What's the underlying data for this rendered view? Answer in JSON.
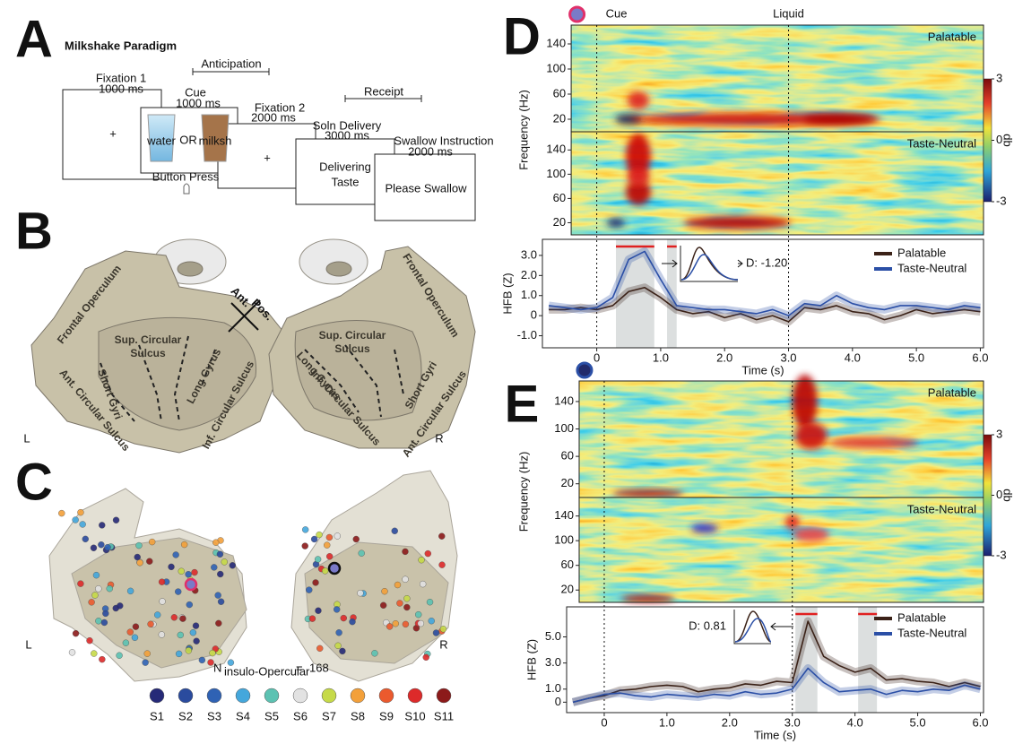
{
  "panel_a": {
    "letter": "A",
    "title": "Milkshake Paradigm",
    "fixation1": "Fixation 1",
    "fixation1_duration": "1000 ms",
    "anticipation": "Anticipation",
    "cue": "Cue",
    "cue_duration": "1000 ms",
    "water": "water",
    "or": "OR",
    "milkshake": "milksh",
    "button_press": "Button Press",
    "fixation2": "Fixation 2",
    "fixation2_duration": "2000 ms",
    "plus": "+",
    "receipt": "Receipt",
    "delivery": "Soln Delivery",
    "delivery_duration": "3000 ms",
    "delivering": "Delivering",
    "taste": "Taste",
    "swallow": "Swallow Instruction",
    "swallow_duration": "2000 ms",
    "please_swallow": "Please Swallow"
  },
  "panel_b": {
    "letter": "B",
    "ant_dir": "Ant.",
    "pos_dir": "Pos.",
    "left": {
      "frontal": "Frontal Operculum",
      "sup1": "Sup. Circular",
      "sup2": "Sulcus",
      "short": "Short Gyri",
      "long": "Long Gyrus",
      "inf": "Inf. Circular Sulcus",
      "ant": "Ant. Circular Sulcus",
      "hemisphere": "L"
    },
    "right": {
      "frontal": "Frontal Operculum",
      "sup1": "Sup. Circular",
      "sup2": "Sulcus",
      "short": "Short Gyri",
      "long": "Long Gyrus",
      "inf": "Inf. Circular Sulcus",
      "ant": "Ant. Circular Sulcus",
      "hemisphere": "R"
    }
  },
  "panel_c": {
    "letter": "C",
    "left": "L",
    "right": "R",
    "n_label": "N",
    "n_subscript": "insulo-Opercular",
    "n_equals": "=",
    "n_count": 168,
    "subjects": [
      {
        "name": "S1",
        "color": "#262a78"
      },
      {
        "name": "S2",
        "color": "#2a4b9e"
      },
      {
        "name": "S3",
        "color": "#2f62b4"
      },
      {
        "name": "S4",
        "color": "#44a7dc"
      },
      {
        "name": "S5",
        "color": "#5cc2b2"
      },
      {
        "name": "S6",
        "color": "#e2e2e2"
      },
      {
        "name": "S7",
        "color": "#c6da48"
      },
      {
        "name": "S8",
        "color": "#f3a03a"
      },
      {
        "name": "S9",
        "color": "#eb5a2e"
      },
      {
        "name": "S10",
        "color": "#dd2a2a"
      },
      {
        "name": "S11",
        "color": "#8c1a1a"
      }
    ]
  },
  "chart_data": [
    {
      "type": "line",
      "letter": "D",
      "events": [
        {
          "time": 0,
          "label": "Cue"
        },
        {
          "time": 3,
          "label": "Liquid"
        }
      ],
      "spectrogram": {
        "ylabel": "Frequency (Hz)",
        "top_label": "Palatable",
        "bottom_label": "Taste-Neutral",
        "xlim": [
          -0.4,
          6.05
        ],
        "ylim": [
          0,
          170
        ],
        "yticks": [
          20,
          60,
          100,
          140
        ],
        "colorbar_label": "db",
        "clim": [
          -3,
          3
        ],
        "colorbar_ticks": [
          -3,
          0,
          3
        ]
      },
      "ylabel": "HFB (Z)",
      "xlabel": "Time (s)",
      "xlim": [
        -0.85,
        6.05
      ],
      "ylim": [
        -1.6,
        3.8
      ],
      "xticks": [
        0,
        {
          "value": 1,
          "label": "1.0"
        },
        {
          "value": 2,
          "label": "2.0"
        },
        {
          "value": 3,
          "label": "3.0"
        },
        {
          "value": 4,
          "label": "4.0"
        },
        {
          "value": 5,
          "label": "5.0"
        },
        {
          "value": 6,
          "label": "6.0"
        }
      ],
      "yticks": [
        {
          "value": -1,
          "label": "-1.0"
        },
        0,
        {
          "value": 1,
          "label": "1.0"
        },
        {
          "value": 2,
          "label": "2.0"
        },
        {
          "value": 3,
          "label": "3.0"
        }
      ],
      "significant_windows": [
        [
          0.3,
          0.9
        ],
        [
          1.1,
          1.25
        ]
      ],
      "inset_text": "D:  -1.20",
      "x": [
        -0.75,
        -0.5,
        -0.25,
        0,
        0.25,
        0.5,
        0.75,
        1,
        1.25,
        1.5,
        1.75,
        2,
        2.25,
        2.5,
        2.75,
        3,
        3.25,
        3.5,
        3.75,
        4,
        4.25,
        4.5,
        4.75,
        5,
        5.25,
        5.5,
        5.75,
        6
      ],
      "series": [
        {
          "name": "Palatable",
          "color": "#3b2218",
          "values": [
            0.3,
            0.3,
            0.4,
            0.3,
            0.5,
            1.2,
            1.4,
            0.9,
            0.3,
            0.1,
            0.2,
            -0.1,
            0.1,
            -0.2,
            0,
            -0.3,
            0.4,
            0.3,
            0.5,
            0.2,
            0.1,
            -0.2,
            0,
            0.3,
            0.1,
            0.2,
            0.3,
            0.2
          ]
        },
        {
          "name": "Taste-Neutral",
          "color": "#2b4fa6",
          "values": [
            0.5,
            0.4,
            0.3,
            0.4,
            0.9,
            2.8,
            3.2,
            1.8,
            0.5,
            0.4,
            0.3,
            0.3,
            0.2,
            0.1,
            0.3,
            0,
            0.6,
            0.5,
            1.0,
            0.6,
            0.4,
            0.3,
            0.5,
            0.5,
            0.4,
            0.3,
            0.5,
            0.4
          ]
        }
      ]
    },
    {
      "type": "line",
      "letter": "E",
      "events": [
        {
          "time": 0
        },
        {
          "time": 3
        }
      ],
      "spectrogram": {
        "ylabel": "Frequency (Hz)",
        "top_label": "Palatable",
        "bottom_label": "Taste-Neutral",
        "xlim": [
          -0.4,
          6.05
        ],
        "ylim": [
          0,
          170
        ],
        "yticks": [
          20,
          60,
          100,
          140
        ],
        "colorbar_label": "db",
        "clim": [
          -3,
          3
        ],
        "colorbar_ticks": [
          -3,
          0,
          3
        ]
      },
      "ylabel": "HFB (Z)",
      "xlabel": "Time (s)",
      "xlim": [
        -0.6,
        6.05
      ],
      "ylim": [
        -0.8,
        7.3
      ],
      "xticks": [
        0,
        {
          "value": 1,
          "label": "1.0"
        },
        {
          "value": 2,
          "label": "2.0"
        },
        {
          "value": 3,
          "label": "3.0"
        },
        {
          "value": 4,
          "label": "4.0"
        },
        {
          "value": 5,
          "label": "5.0"
        },
        {
          "value": 6,
          "label": "6.0"
        }
      ],
      "yticks": [
        0,
        {
          "value": 1,
          "label": "1.0"
        },
        {
          "value": 3,
          "label": "3.0"
        },
        {
          "value": 5,
          "label": "5.0"
        }
      ],
      "significant_windows": [
        [
          3.05,
          3.4
        ],
        [
          4.05,
          4.35
        ]
      ],
      "inset_text": "D: 0.81",
      "x": [
        -0.5,
        -0.25,
        0,
        0.25,
        0.5,
        0.75,
        1,
        1.25,
        1.5,
        1.75,
        2,
        2.25,
        2.5,
        2.75,
        3,
        3.25,
        3.5,
        3.75,
        4,
        4.25,
        4.5,
        4.75,
        5,
        5.25,
        5.5,
        5.75,
        6
      ],
      "series": [
        {
          "name": "Palatable",
          "color": "#3b2218",
          "values": [
            0,
            0.3,
            0.5,
            0.9,
            1.0,
            1.2,
            1.3,
            1.2,
            0.8,
            1.0,
            1.1,
            1.4,
            1.3,
            1.6,
            1.5,
            6.2,
            3.5,
            2.8,
            2.3,
            2.6,
            1.7,
            1.8,
            1.6,
            1.5,
            1.2,
            1.5,
            1.2
          ]
        },
        {
          "name": "Taste-Neutral",
          "color": "#2b4fa6",
          "values": [
            0,
            0.3,
            0.6,
            0.7,
            0.5,
            0.4,
            0.6,
            0.5,
            0.4,
            0.6,
            0.5,
            0.8,
            0.6,
            0.7,
            1.0,
            2.6,
            1.5,
            0.8,
            0.9,
            1.0,
            0.6,
            0.9,
            0.8,
            1.0,
            0.9,
            1.3,
            1.0
          ]
        }
      ]
    }
  ]
}
